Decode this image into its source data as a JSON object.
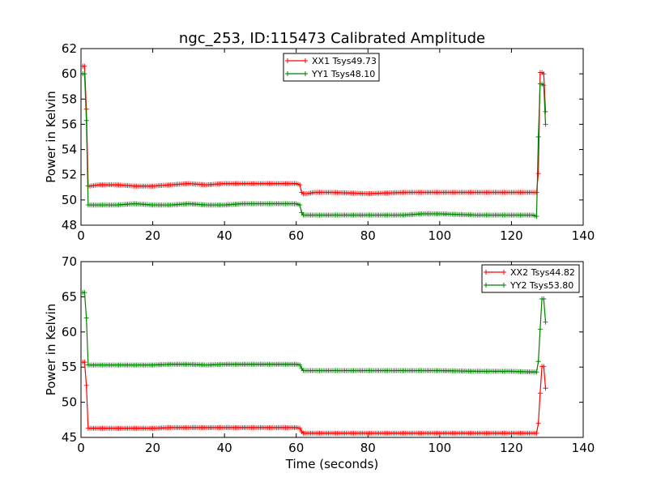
{
  "title": "ngc_253, ID:115473 Calibrated Amplitude",
  "colors": {
    "red": "#ff0000",
    "green": "#007f00"
  },
  "chart_data": [
    {
      "type": "line",
      "title": "ngc_253, ID:115473 Calibrated Amplitude",
      "xlabel": "",
      "ylabel": "Power in Kelvin",
      "xlim": [
        0,
        140
      ],
      "ylim": [
        48,
        62
      ],
      "xticks": [
        0,
        20,
        40,
        60,
        80,
        100,
        120,
        140
      ],
      "yticks": [
        48,
        50,
        52,
        54,
        56,
        58,
        60,
        62
      ],
      "legend_position": "top-center",
      "series": [
        {
          "name": "XX1 Tsys49.73",
          "color": "#ff0000",
          "x": [
            0.5,
            1.0,
            1.5,
            2.0,
            2.5,
            5,
            10,
            15,
            20,
            25,
            30,
            35,
            40,
            45,
            50,
            55,
            60,
            61,
            61.5,
            62,
            63,
            65,
            70,
            80,
            90,
            95,
            100,
            110,
            120,
            126,
            127,
            127.5,
            128,
            128.5,
            129,
            129.5
          ],
          "values": [
            60.6,
            60.6,
            57.2,
            51.1,
            51.1,
            51.2,
            51.2,
            51.1,
            51.1,
            51.2,
            51.3,
            51.2,
            51.3,
            51.3,
            51.3,
            51.3,
            51.3,
            51.2,
            50.6,
            50.5,
            50.5,
            50.6,
            50.6,
            50.5,
            50.6,
            50.6,
            50.6,
            50.6,
            50.6,
            50.6,
            50.6,
            52.1,
            60.1,
            60.1,
            60.0,
            57.0
          ]
        },
        {
          "name": "YY1 Tsys48.10",
          "color": "#007f00",
          "x": [
            0.5,
            1.0,
            1.5,
            2.0,
            2.5,
            5,
            10,
            15,
            20,
            25,
            30,
            35,
            40,
            45,
            50,
            55,
            60,
            61,
            61.5,
            62,
            63,
            65,
            70,
            80,
            90,
            95,
            100,
            110,
            120,
            126,
            127,
            127.5,
            128,
            128.5,
            129,
            129.5
          ],
          "values": [
            60.0,
            60.0,
            56.3,
            49.6,
            49.6,
            49.6,
            49.6,
            49.7,
            49.6,
            49.6,
            49.7,
            49.6,
            49.6,
            49.7,
            49.7,
            49.7,
            49.7,
            49.6,
            49.0,
            48.8,
            48.8,
            48.8,
            48.8,
            48.8,
            48.8,
            48.9,
            48.9,
            48.8,
            48.8,
            48.8,
            48.7,
            55.0,
            59.2,
            59.2,
            59.1,
            56.0
          ]
        }
      ]
    },
    {
      "type": "line",
      "title": "",
      "xlabel": "Time (seconds)",
      "ylabel": "Power in Kelvin",
      "xlim": [
        0,
        140
      ],
      "ylim": [
        45,
        70
      ],
      "xticks": [
        0,
        20,
        40,
        60,
        80,
        100,
        120,
        140
      ],
      "yticks": [
        45,
        50,
        55,
        60,
        65,
        70
      ],
      "legend_position": "top-right",
      "series": [
        {
          "name": "XX2 Tsys44.82",
          "color": "#ff0000",
          "x": [
            0.5,
            1.0,
            1.5,
            2.0,
            2.5,
            5,
            10,
            15,
            20,
            25,
            30,
            35,
            40,
            45,
            50,
            55,
            60,
            61,
            61.5,
            62,
            63,
            65,
            70,
            80,
            90,
            100,
            110,
            120,
            126,
            127,
            127.5,
            128,
            128.5,
            129,
            129.5
          ],
          "values": [
            55.7,
            55.7,
            52.4,
            46.3,
            46.3,
            46.3,
            46.3,
            46.3,
            46.3,
            46.4,
            46.4,
            46.4,
            46.4,
            46.4,
            46.4,
            46.4,
            46.4,
            46.3,
            45.8,
            45.6,
            45.6,
            45.6,
            45.6,
            45.6,
            45.6,
            45.6,
            45.6,
            45.6,
            45.6,
            45.6,
            47.0,
            51.3,
            55.1,
            55.1,
            52.0
          ]
        },
        {
          "name": "YY2 Tsys53.80",
          "color": "#007f00",
          "x": [
            0.5,
            1.0,
            1.5,
            2.0,
            2.5,
            5,
            10,
            15,
            20,
            25,
            30,
            35,
            40,
            45,
            50,
            55,
            60,
            61,
            61.5,
            62,
            63,
            65,
            70,
            80,
            90,
            100,
            110,
            120,
            126,
            127,
            127.5,
            128,
            128.5,
            129,
            129.5
          ],
          "values": [
            65.6,
            65.6,
            62.0,
            55.3,
            55.3,
            55.3,
            55.3,
            55.3,
            55.3,
            55.4,
            55.4,
            55.3,
            55.4,
            55.4,
            55.4,
            55.4,
            55.4,
            55.3,
            54.8,
            54.5,
            54.5,
            54.5,
            54.5,
            54.5,
            54.5,
            54.5,
            54.4,
            54.4,
            54.3,
            54.3,
            55.8,
            60.4,
            64.7,
            64.7,
            61.4
          ]
        }
      ]
    }
  ]
}
